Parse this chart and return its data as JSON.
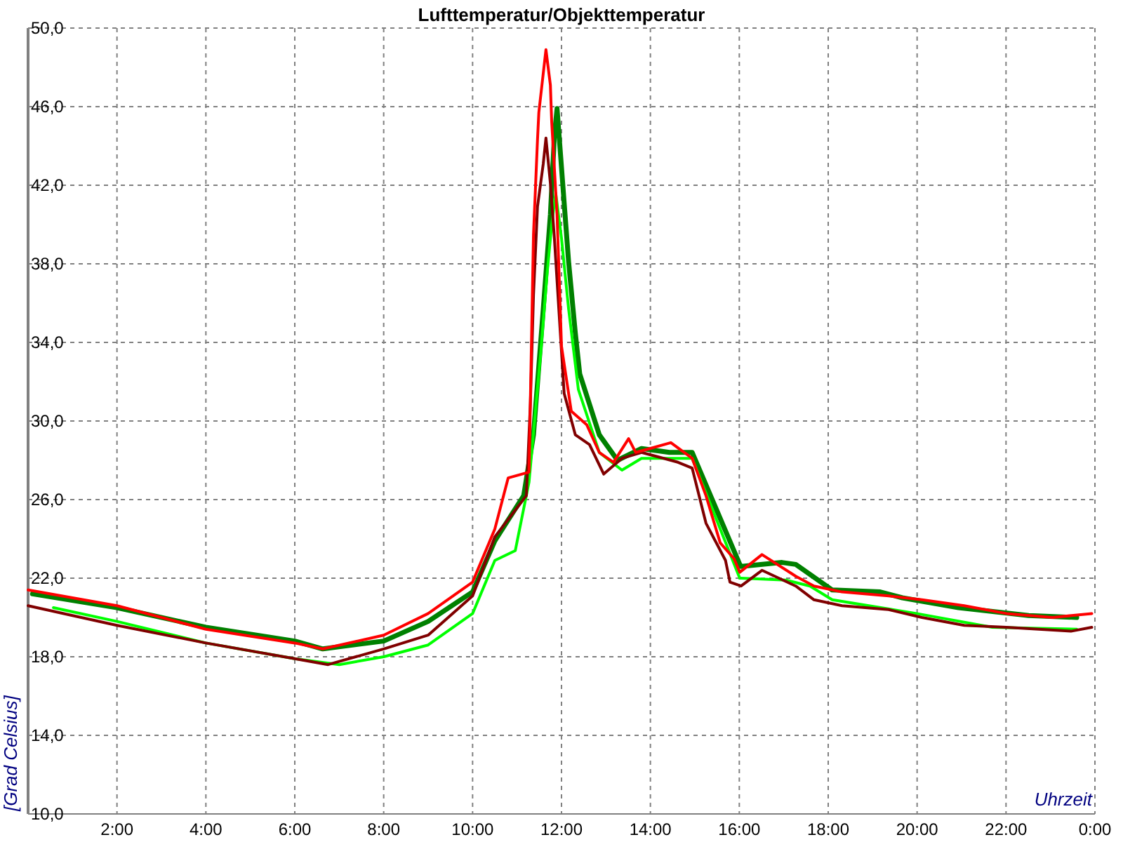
{
  "chart_data": {
    "type": "line",
    "title": "Lufttemperatur/Objekttemperatur",
    "xlabel": "Uhrzeit",
    "ylabel": "[Grad Celsius]",
    "xlim": [
      0,
      24
    ],
    "ylim": [
      10,
      50
    ],
    "xticks": [
      {
        "value": 0,
        "label": null
      },
      {
        "value": 2,
        "label": "2:00"
      },
      {
        "value": 4,
        "label": "4:00"
      },
      {
        "value": 6,
        "label": "6:00"
      },
      {
        "value": 8,
        "label": "8:00"
      },
      {
        "value": 10,
        "label": "10:00"
      },
      {
        "value": 12,
        "label": "12:00"
      },
      {
        "value": 14,
        "label": "14:00"
      },
      {
        "value": 16,
        "label": "16:00"
      },
      {
        "value": 18,
        "label": "18:00"
      },
      {
        "value": 20,
        "label": "20:00"
      },
      {
        "value": 22,
        "label": "22:00"
      },
      {
        "value": 24,
        "label": "0:00"
      }
    ],
    "yticks": [
      {
        "value": 10,
        "label": "10,0"
      },
      {
        "value": 14,
        "label": "14,0"
      },
      {
        "value": 18,
        "label": "18,0"
      },
      {
        "value": 22,
        "label": "22,0"
      },
      {
        "value": 26,
        "label": "26,0"
      },
      {
        "value": 30,
        "label": "30,0"
      },
      {
        "value": 34,
        "label": "34,0"
      },
      {
        "value": 38,
        "label": "38,0"
      },
      {
        "value": 42,
        "label": "42,0"
      },
      {
        "value": 46,
        "label": "46,0"
      },
      {
        "value": 50,
        "label": "50,0"
      }
    ],
    "grid": true,
    "line_style": "solid",
    "marker": "none",
    "series": [
      {
        "color": "#008000",
        "x": [
          0.1,
          2,
          4,
          6,
          6.63,
          8,
          9,
          10,
          10.5,
          11.15,
          11.37,
          11.59,
          11.75,
          11.84,
          11.9,
          12.0,
          12.16,
          12.31,
          12.41,
          12.85,
          13.26,
          13.8,
          14.43,
          14.94,
          16.01,
          16.04,
          16.96,
          17.27,
          18.09,
          19.17,
          19.67,
          20.93,
          22.51,
          23.59
        ],
        "values": [
          21.2,
          20.5,
          19.5,
          18.8,
          18.4,
          18.8,
          19.8,
          21.3,
          23.9,
          26.2,
          29.3,
          35.7,
          40.5,
          44.5,
          45.9,
          42.9,
          38.1,
          34.5,
          32.4,
          29.3,
          28.0,
          28.6,
          28.4,
          28.4,
          22.7,
          22.6,
          22.8,
          22.7,
          21.4,
          21.3,
          21.0,
          20.5,
          20.1,
          20.0
        ]
      },
      {
        "color": "#00ff00",
        "x": [
          0.57,
          2,
          4,
          6,
          7,
          8,
          9,
          10,
          10.5,
          10.96,
          11.27,
          11.53,
          11.68,
          11.78,
          11.87,
          12.0,
          12.16,
          12.38,
          12.85,
          13.36,
          13.8,
          14.94,
          16.01,
          16.04,
          17.05,
          17.59,
          18.09,
          19.99,
          21.69,
          23.59
        ],
        "values": [
          20.5,
          19.8,
          18.7,
          17.9,
          17.6,
          18.0,
          18.6,
          20.2,
          22.9,
          23.4,
          26.9,
          33.4,
          37.6,
          40.0,
          41.6,
          39.3,
          35.7,
          31.6,
          28.4,
          27.5,
          28.1,
          28.1,
          22.0,
          22.0,
          21.9,
          21.6,
          20.9,
          20.2,
          19.5,
          19.4
        ]
      },
      {
        "color": "#800000",
        "x": [
          0,
          2,
          4,
          6,
          6.75,
          8,
          9,
          10,
          10.5,
          11.21,
          11.3,
          11.37,
          11.46,
          11.59,
          11.65,
          11.75,
          11.84,
          11.94,
          12.06,
          12.31,
          12.63,
          12.95,
          13.36,
          13.8,
          14.3,
          14.62,
          14.94,
          15.25,
          15.69,
          15.79,
          16.04,
          16.51,
          17.27,
          17.68,
          18.31,
          19.36,
          20.11,
          21.06,
          22.01,
          23.46,
          23.93
        ],
        "values": [
          20.6,
          19.6,
          18.7,
          17.9,
          17.6,
          18.4,
          19.1,
          21.1,
          24.1,
          26.2,
          30.9,
          36.4,
          40.9,
          43.1,
          44.4,
          42.1,
          39.3,
          35.7,
          31.4,
          29.3,
          28.8,
          27.3,
          28.1,
          28.4,
          28.1,
          27.9,
          27.6,
          24.8,
          22.9,
          21.8,
          21.6,
          22.4,
          21.6,
          20.9,
          20.6,
          20.4,
          20.0,
          19.6,
          19.5,
          19.3,
          19.5
        ]
      },
      {
        "color": "#ff0000",
        "x": [
          0,
          2,
          4,
          6,
          6.63,
          8,
          9,
          10,
          10.5,
          10.8,
          11.27,
          11.37,
          11.46,
          11.49,
          11.65,
          11.75,
          11.78,
          11.9,
          12.0,
          12.22,
          12.57,
          12.85,
          13.17,
          13.51,
          13.67,
          13.99,
          14.46,
          14.94,
          15.25,
          15.57,
          15.88,
          16.01,
          16.51,
          17.27,
          17.68,
          18.31,
          19.36,
          20.11,
          21.06,
          22.01,
          23.05,
          23.93
        ],
        "values": [
          21.4,
          20.6,
          19.4,
          18.7,
          18.4,
          19.1,
          20.2,
          21.8,
          24.5,
          27.1,
          27.4,
          39.5,
          44.3,
          45.7,
          48.9,
          47.1,
          45.2,
          40.5,
          33.8,
          30.5,
          29.8,
          28.4,
          27.9,
          29.1,
          28.4,
          28.6,
          28.9,
          28.1,
          26.2,
          23.8,
          23.0,
          22.3,
          23.2,
          22.1,
          21.6,
          21.3,
          21.1,
          20.9,
          20.6,
          20.2,
          20.0,
          20.2
        ]
      }
    ]
  }
}
